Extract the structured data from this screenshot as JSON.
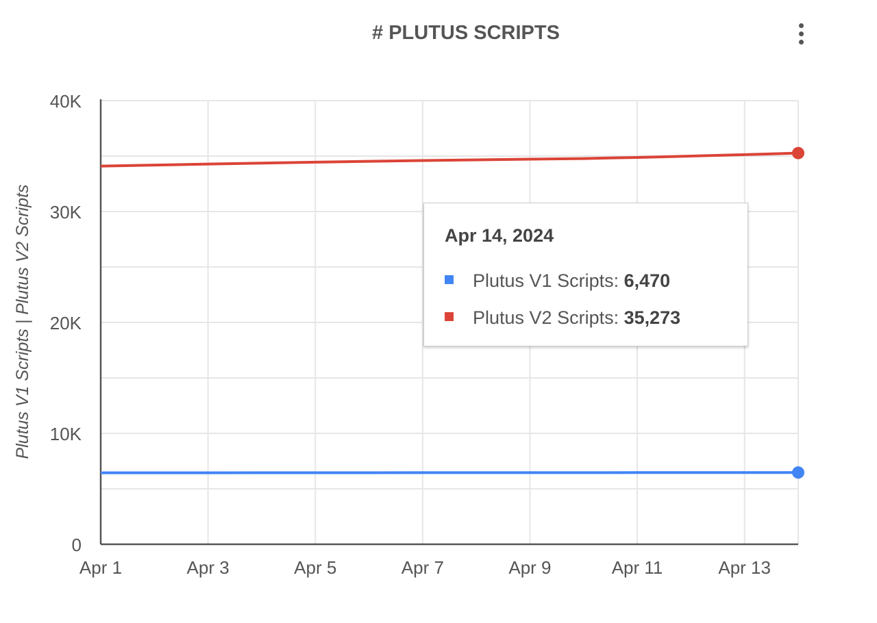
{
  "header": {
    "title": "# PLUTUS SCRIPTS",
    "menu_icon": "more-vert-icon"
  },
  "tooltip": {
    "date": "Apr 14, 2024",
    "rows": [
      {
        "label": "Plutus V1 Scripts: ",
        "value": "6,470",
        "color": "#4285F4"
      },
      {
        "label": "Plutus V2 Scripts: ",
        "value": "35,273",
        "color": "#DB4437"
      }
    ]
  },
  "chart_data": {
    "type": "line",
    "title": "# PLUTUS SCRIPTS",
    "xlabel": "",
    "ylabel": "Plutus V1 Scripts | Plutus V2 Scripts",
    "x": [
      "Apr 1",
      "Apr 2",
      "Apr 3",
      "Apr 4",
      "Apr 5",
      "Apr 6",
      "Apr 7",
      "Apr 8",
      "Apr 9",
      "Apr 10",
      "Apr 11",
      "Apr 12",
      "Apr 13",
      "Apr 14"
    ],
    "x_tick_labels": [
      "Apr 1",
      "Apr 3",
      "Apr 5",
      "Apr 7",
      "Apr 9",
      "Apr 11",
      "Apr 13"
    ],
    "y_tick_labels": [
      "0",
      "10K",
      "20K",
      "30K",
      "40K"
    ],
    "ylim": [
      0,
      40000
    ],
    "grid": true,
    "series": [
      {
        "name": "Plutus V1 Scripts",
        "color": "#4285F4",
        "values": [
          6440,
          6443,
          6445,
          6447,
          6450,
          6452,
          6455,
          6457,
          6459,
          6461,
          6463,
          6465,
          6468,
          6470
        ]
      },
      {
        "name": "Plutus V2 Scripts",
        "color": "#DB4437",
        "values": [
          34100,
          34190,
          34280,
          34370,
          34450,
          34530,
          34600,
          34660,
          34720,
          34780,
          34880,
          35000,
          35130,
          35273
        ]
      }
    ]
  }
}
